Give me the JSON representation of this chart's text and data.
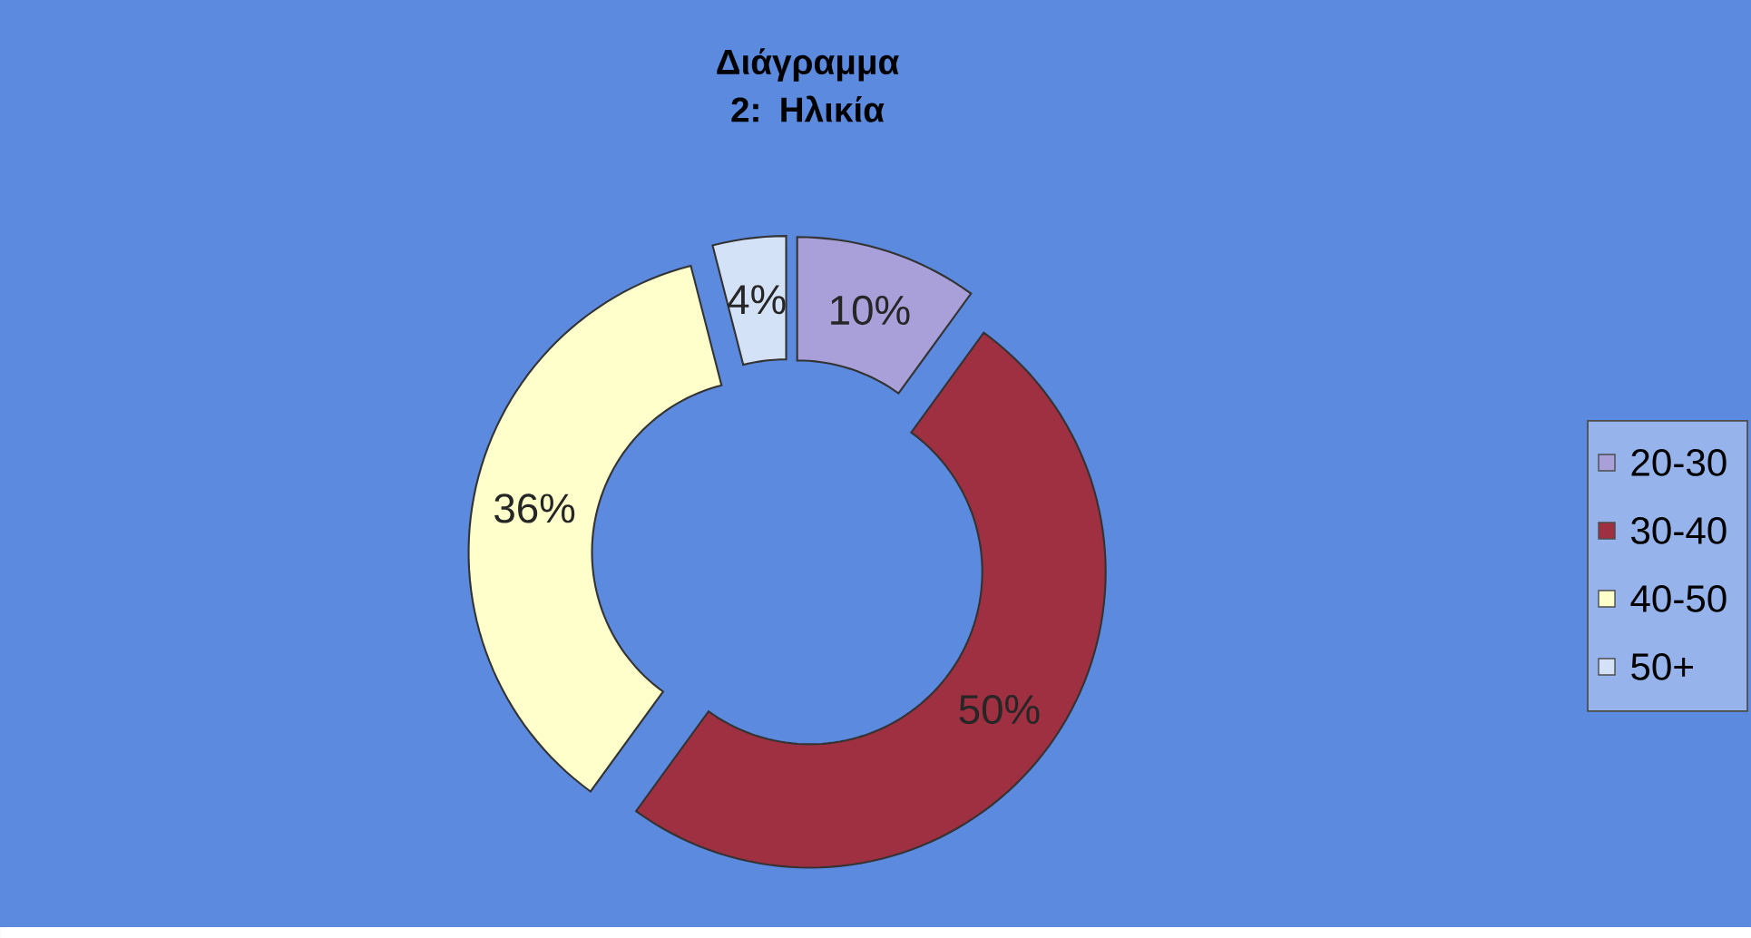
{
  "chart_data": {
    "type": "donut",
    "title": "Διάγραμμα 2: Ηλικία",
    "categories": [
      "20-30",
      "30-40",
      "40-50",
      "50+"
    ],
    "values": [
      10,
      50,
      36,
      4
    ],
    "value_labels": [
      "10%",
      "50%",
      "36%",
      "4%"
    ],
    "colors": [
      "#a99fd9",
      "#9e3042",
      "#ffffcc",
      "#d4e2f7"
    ],
    "legend": "right"
  }
}
